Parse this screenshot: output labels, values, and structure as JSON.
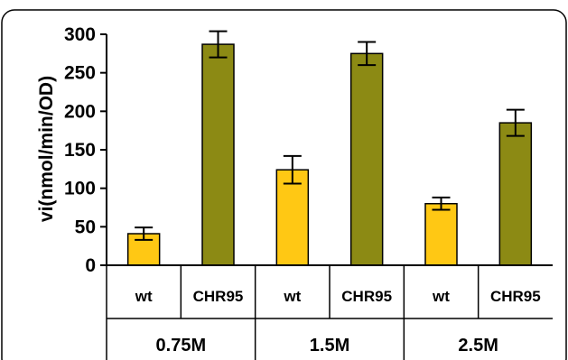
{
  "chart_data": {
    "type": "bar",
    "ylabel": "vi(nmol/min/OD)",
    "ylim": [
      0,
      300
    ],
    "yticks": [
      "0",
      "50",
      "100",
      "150",
      "200",
      "250",
      "300"
    ],
    "groups": [
      {
        "label": "0.75M",
        "bars": [
          {
            "category": "wt",
            "value": 41,
            "error": 8,
            "color": "#FFC814"
          },
          {
            "category": "CHR95",
            "value": 287,
            "error": 17,
            "color": "#8C8A14"
          }
        ]
      },
      {
        "label": "1.5M",
        "bars": [
          {
            "category": "wt",
            "value": 124,
            "error": 18,
            "color": "#FFC814"
          },
          {
            "category": "CHR95",
            "value": 275,
            "error": 15,
            "color": "#8C8A14"
          }
        ]
      },
      {
        "label": "2.5M",
        "bars": [
          {
            "category": "wt",
            "value": 80,
            "error": 8,
            "color": "#FFC814"
          },
          {
            "category": "CHR95",
            "value": 185,
            "error": 17,
            "color": "#8C8A14"
          }
        ]
      }
    ]
  }
}
